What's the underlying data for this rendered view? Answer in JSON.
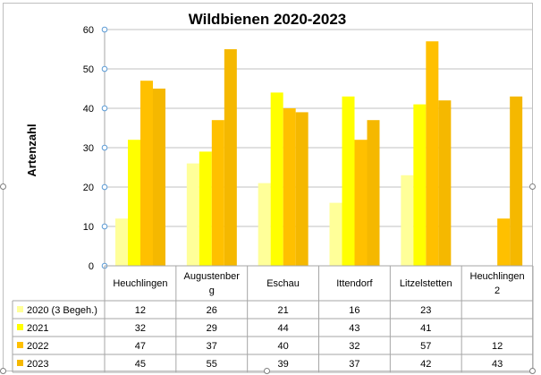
{
  "chart_data": {
    "type": "bar",
    "title": "Wildbienen 2020-2023",
    "xlabel": "",
    "ylabel": "Artenzahl",
    "ylim": [
      0,
      60
    ],
    "yticks": [
      0,
      10,
      20,
      30,
      40,
      50,
      60
    ],
    "grid": true,
    "legend": "data-table",
    "categories": [
      "Heuchlingen",
      "Augustenberg",
      "Eschau",
      "Ittendorf",
      "Litzelstetten",
      "Heuchlingen 2"
    ],
    "category_display": [
      [
        "Heuchlingen"
      ],
      [
        "Augustenber",
        "g"
      ],
      [
        "Eschau"
      ],
      [
        "Ittendorf"
      ],
      [
        "Litzelstetten"
      ],
      [
        "Heuchlingen",
        "2"
      ]
    ],
    "series": [
      {
        "name": "2020 (3 Begeh.)",
        "color": "#ffff99",
        "values": [
          12,
          26,
          21,
          16,
          23,
          null
        ]
      },
      {
        "name": "2021",
        "color": "#ffff00",
        "values": [
          32,
          29,
          44,
          43,
          41,
          null
        ]
      },
      {
        "name": "2022",
        "color": "#ffc000",
        "values": [
          47,
          37,
          40,
          32,
          57,
          12
        ]
      },
      {
        "name": "2023",
        "color": "#f5b800",
        "values": [
          45,
          55,
          39,
          37,
          42,
          43
        ]
      }
    ]
  }
}
